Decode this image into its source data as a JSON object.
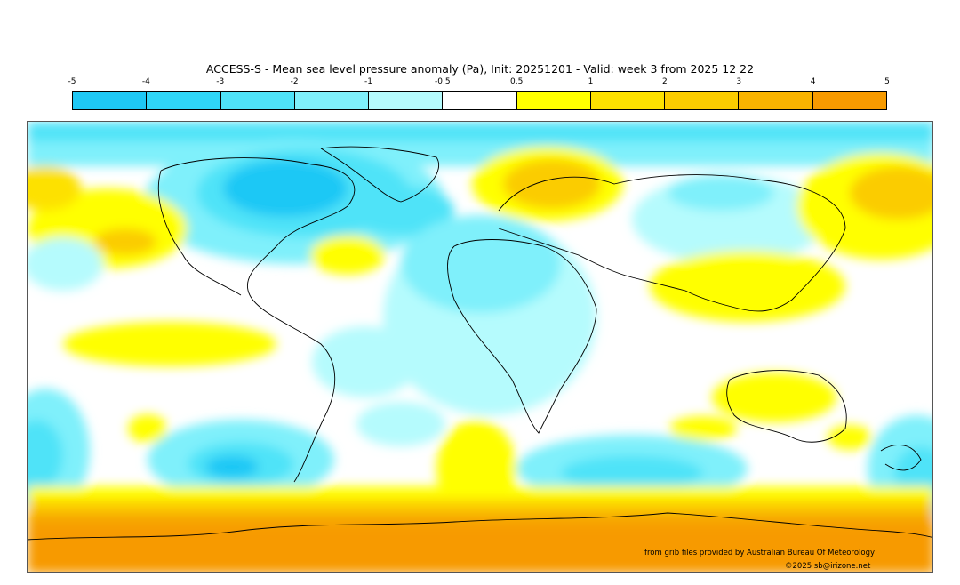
{
  "title": "ACCESS-S - Mean sea level pressure anomaly (Pa), Init: 20251201 - Valid: week 3 from 2025 12 22",
  "colorbar": {
    "ticks": [
      "-5",
      "-4",
      "-3",
      "-2",
      "-1",
      "-0.5",
      "0.5",
      "1",
      "2",
      "3",
      "4",
      "5"
    ],
    "colors": [
      "#1ec8f5",
      "#2fd6f7",
      "#4fe3f8",
      "#7ff0fb",
      "#b5fbfd",
      "#ffffff",
      "#ffff00",
      "#fde100",
      "#fbcc00",
      "#f9b300",
      "#f79a00"
    ]
  },
  "credits": {
    "source": "from grib files provided by Australian Bureau Of Meteorology",
    "copyright": "©2025 sb@irizone.net"
  }
}
